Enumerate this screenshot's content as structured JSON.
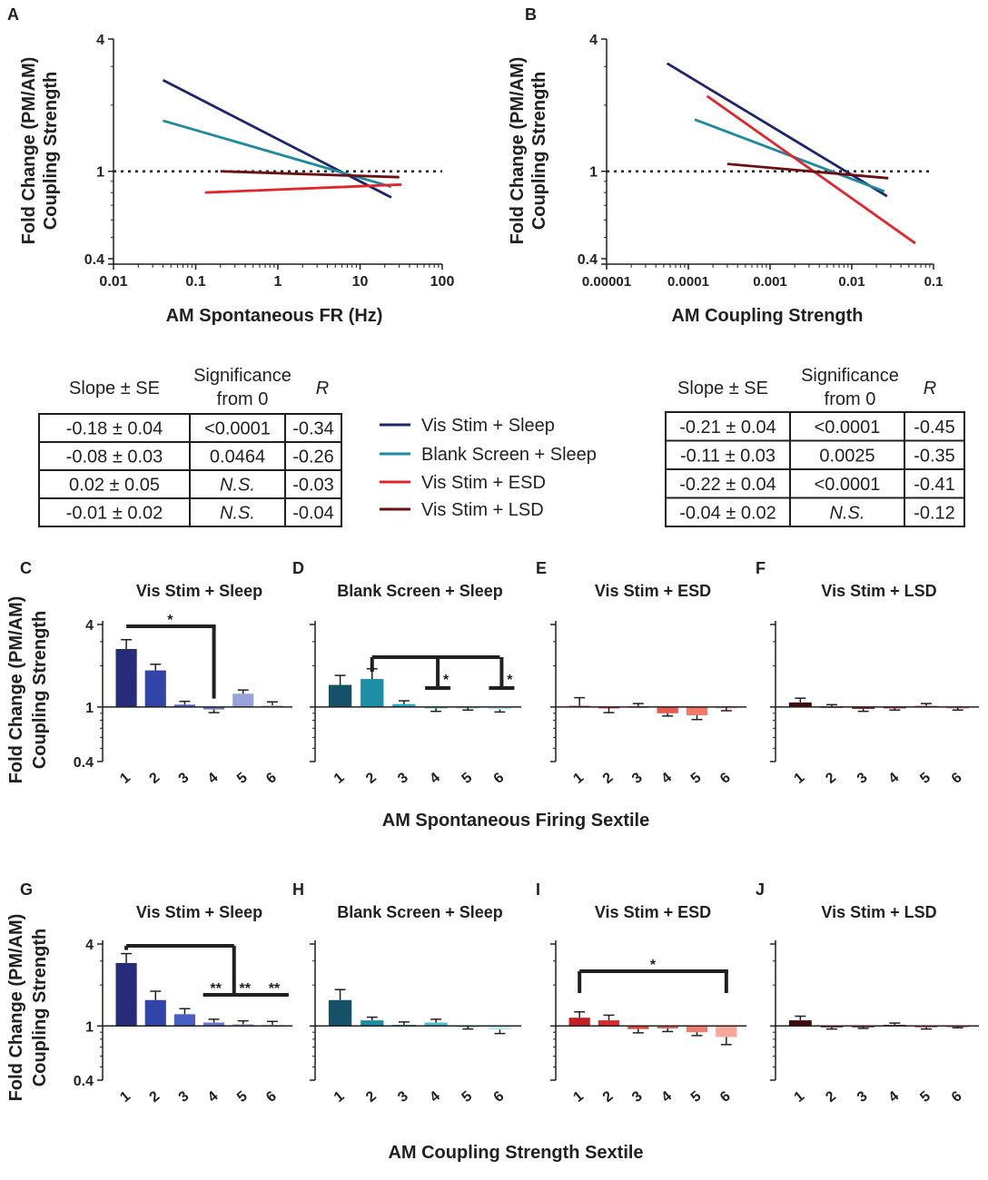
{
  "panel_letters": {
    "A": "A",
    "B": "B",
    "C": "C",
    "D": "D",
    "E": "E",
    "F": "F",
    "G": "G",
    "H": "H",
    "I": "I",
    "J": "J"
  },
  "colors": {
    "vis_sleep": "#1f2470",
    "blank_sleep": "#1e8aa0",
    "vis_esd": "#e3242b",
    "vis_lsd": "#6b0f12"
  },
  "y_label_line1": "Fold Change (PM/AM)",
  "y_label_line2": "Coupling Strength",
  "legend": {
    "items": [
      {
        "label": "Vis Stim + Sleep",
        "color": "#1f2470"
      },
      {
        "label": "Blank Screen + Sleep",
        "color": "#1e8aa0"
      },
      {
        "label": "Vis Stim + ESD",
        "color": "#e3242b"
      },
      {
        "label": "Vis Stim + LSD",
        "color": "#6b0f12"
      }
    ]
  },
  "tables": {
    "headers": {
      "slope": "Slope ± SE",
      "sig1": "Significance",
      "sig2": "from 0",
      "r": "R"
    },
    "A": [
      [
        "-0.18 ± 0.04",
        "<0.0001",
        "-0.34"
      ],
      [
        "-0.08 ± 0.03",
        "0.0464",
        "-0.26"
      ],
      [
        "0.02 ± 0.05",
        "N.S.",
        "-0.03"
      ],
      [
        "-0.01 ± 0.02",
        "N.S.",
        "-0.04"
      ]
    ],
    "B": [
      [
        "-0.21 ± 0.04",
        "<0.0001",
        "-0.45"
      ],
      [
        "-0.11 ± 0.03",
        "0.0025",
        "-0.35"
      ],
      [
        "-0.22 ± 0.04",
        "<0.0001",
        "-0.41"
      ],
      [
        "-0.04 ± 0.02",
        "N.S.",
        "-0.12"
      ]
    ]
  },
  "row_titles": {
    "middle": "AM Spontaneous Firing Sextile",
    "bottom": "AM Coupling Strength Sextile"
  },
  "chart_data": [
    {
      "id": "A",
      "type": "line",
      "xlabel": "AM Spontaneous FR (Hz)",
      "x_scale": "log",
      "xlim": [
        0.01,
        100
      ],
      "x_ticks": [
        0.01,
        0.1,
        1,
        10,
        100
      ],
      "x_tick_labels": [
        "0.01",
        "0.1",
        "1",
        "10",
        "100"
      ],
      "y_scale": "log",
      "ylim": [
        0.4,
        4
      ],
      "y_ticks": [
        0.4,
        1,
        4
      ],
      "y_tick_labels": [
        "0.4",
        "1",
        "4"
      ],
      "reference_line": 1,
      "series": [
        {
          "name": "Vis Stim + Sleep",
          "x": [
            0.04,
            24
          ],
          "y": [
            2.6,
            0.76
          ]
        },
        {
          "name": "Blank Screen + Sleep",
          "x": [
            0.04,
            24
          ],
          "y": [
            1.7,
            0.85
          ]
        },
        {
          "name": "Vis Stim + ESD",
          "x": [
            0.13,
            32
          ],
          "y": [
            0.8,
            0.87
          ]
        },
        {
          "name": "Vis Stim + LSD",
          "x": [
            0.2,
            30
          ],
          "y": [
            1.0,
            0.94
          ]
        }
      ]
    },
    {
      "id": "B",
      "type": "line",
      "xlabel": "AM Coupling Strength",
      "x_scale": "log",
      "xlim": [
        1e-05,
        0.1
      ],
      "x_ticks": [
        1e-05,
        0.0001,
        0.001,
        0.01,
        0.1
      ],
      "x_tick_labels": [
        "0.00001",
        "0.0001",
        "0.001",
        "0.01",
        "0.1"
      ],
      "y_scale": "log",
      "ylim": [
        0.4,
        4
      ],
      "y_ticks": [
        0.4,
        1,
        4
      ],
      "y_tick_labels": [
        "0.4",
        "1",
        "4"
      ],
      "reference_line": 1,
      "series": [
        {
          "name": "Vis Stim + Sleep",
          "x": [
            5.5e-05,
            0.027
          ],
          "y": [
            3.1,
            0.77
          ]
        },
        {
          "name": "Blank Screen + Sleep",
          "x": [
            0.00012,
            0.025
          ],
          "y": [
            1.72,
            0.81
          ]
        },
        {
          "name": "Vis Stim + ESD",
          "x": [
            0.00017,
            0.06
          ],
          "y": [
            2.2,
            0.47
          ]
        },
        {
          "name": "Vis Stim + LSD",
          "x": [
            0.0003,
            0.028
          ],
          "y": [
            1.08,
            0.93
          ]
        }
      ]
    },
    {
      "id": "C",
      "type": "bar",
      "title": "Vis Stim + Sleep",
      "categories": [
        "1",
        "2",
        "3",
        "4",
        "5",
        "6"
      ],
      "values": [
        2.65,
        1.85,
        1.04,
        0.96,
        1.25,
        1.03
      ],
      "errors": [
        0.45,
        0.2,
        0.06,
        0.05,
        0.08,
        0.06
      ],
      "colors": [
        "#262b7a",
        "#3145a8",
        "#4a5fc2",
        "#6a79cf",
        "#9aa2dc",
        "#c3c8ec"
      ],
      "ylim": [
        0.4,
        4
      ],
      "y_scale": "log",
      "y_ticks": [
        0.4,
        1,
        4
      ],
      "y_tick_labels": [
        "0.4",
        "1",
        "4"
      ],
      "significance": [
        {
          "from": 1,
          "to": 4,
          "label": "*"
        }
      ]
    },
    {
      "id": "D",
      "type": "bar",
      "title": "Blank Screen + Sleep",
      "categories": [
        "1",
        "2",
        "3",
        "4",
        "5",
        "6"
      ],
      "values": [
        1.45,
        1.6,
        1.05,
        0.98,
        0.99,
        0.96
      ],
      "errors": [
        0.25,
        0.3,
        0.06,
        0.05,
        0.04,
        0.04
      ],
      "colors": [
        "#15526a",
        "#1d8ea5",
        "#27a7c0",
        "#52bfd6",
        "#88d4e4",
        "#c0e9f2"
      ],
      "ylim": [
        0.4,
        4
      ],
      "y_scale": "log",
      "y_ticks": [
        0.4,
        1,
        4
      ],
      "y_tick_labels": [
        "0.4",
        "1",
        "4"
      ],
      "significance": [
        {
          "from": 2,
          "to": 4,
          "label": "*"
        },
        {
          "from": 2,
          "to": 6,
          "label": "*"
        }
      ]
    },
    {
      "id": "E",
      "type": "bar",
      "title": "Vis Stim + ESD",
      "categories": [
        "1",
        "2",
        "3",
        "4",
        "5",
        "6"
      ],
      "values": [
        1.02,
        0.99,
        1.01,
        0.9,
        0.87,
        0.99
      ],
      "errors": [
        0.15,
        0.08,
        0.05,
        0.04,
        0.06,
        0.05
      ],
      "colors": [
        "#c41e24",
        "#d72b2b",
        "#e3423a",
        "#ea5a4b",
        "#f07b69",
        "#f6a898"
      ],
      "ylim": [
        0.4,
        4
      ],
      "y_scale": "log",
      "y_ticks": [
        0.4,
        1,
        4
      ],
      "y_tick_labels": [
        "0.4",
        "1",
        "4"
      ],
      "significance": []
    },
    {
      "id": "F",
      "type": "bar",
      "title": "Vis Stim + LSD",
      "categories": [
        "1",
        "2",
        "3",
        "4",
        "5",
        "6"
      ],
      "values": [
        1.08,
        1.01,
        0.97,
        0.98,
        1.02,
        0.99
      ],
      "errors": [
        0.08,
        0.03,
        0.04,
        0.03,
        0.04,
        0.04
      ],
      "colors": [
        "#3f0a0c",
        "#6b0f12",
        "#86161b",
        "#9e2a2f",
        "#b5484c",
        "#cf7a7c"
      ],
      "ylim": [
        0.4,
        4
      ],
      "y_scale": "log",
      "y_ticks": [
        0.4,
        1,
        4
      ],
      "y_tick_labels": [
        "0.4",
        "1",
        "4"
      ],
      "significance": []
    },
    {
      "id": "G",
      "type": "bar",
      "title": "Vis Stim + Sleep",
      "categories": [
        "1",
        "2",
        "3",
        "4",
        "5",
        "6"
      ],
      "values": [
        2.9,
        1.55,
        1.22,
        1.06,
        1.03,
        1.02
      ],
      "errors": [
        0.5,
        0.25,
        0.12,
        0.06,
        0.06,
        0.06
      ],
      "colors": [
        "#262b7a",
        "#3145a8",
        "#4a5fc2",
        "#6a79cf",
        "#9aa2dc",
        "#c3c8ec"
      ],
      "ylim": [
        0.4,
        4
      ],
      "y_scale": "log",
      "y_ticks": [
        0.4,
        1,
        4
      ],
      "y_tick_labels": [
        "0.4",
        "1",
        "4"
      ],
      "significance": [
        {
          "from": 1,
          "to": 4,
          "label": "**"
        },
        {
          "from": 1,
          "to": 5,
          "label": "**"
        },
        {
          "from": 1,
          "to": 6,
          "label": "**"
        }
      ]
    },
    {
      "id": "H",
      "type": "bar",
      "title": "Blank Screen + Sleep",
      "categories": [
        "1",
        "2",
        "3",
        "4",
        "5",
        "6"
      ],
      "values": [
        1.55,
        1.1,
        1.02,
        1.06,
        0.99,
        0.94
      ],
      "errors": [
        0.3,
        0.06,
        0.05,
        0.06,
        0.04,
        0.06
      ],
      "colors": [
        "#15526a",
        "#1d8ea5",
        "#27a7c0",
        "#52bfd6",
        "#88d4e4",
        "#c0e9f2"
      ],
      "ylim": [
        0.4,
        4
      ],
      "y_scale": "log",
      "y_ticks": [
        0.4,
        1,
        4
      ],
      "y_tick_labels": [
        "0.4",
        "1",
        "4"
      ],
      "significance": []
    },
    {
      "id": "I",
      "type": "bar",
      "title": "Vis Stim + ESD",
      "categories": [
        "1",
        "2",
        "3",
        "4",
        "5",
        "6"
      ],
      "values": [
        1.15,
        1.1,
        0.95,
        0.96,
        0.9,
        0.83
      ],
      "errors": [
        0.12,
        0.1,
        0.06,
        0.05,
        0.05,
        0.1
      ],
      "colors": [
        "#c41e24",
        "#d72b2b",
        "#e3423a",
        "#ea5a4b",
        "#f07b69",
        "#f6a898"
      ],
      "ylim": [
        0.4,
        4
      ],
      "y_scale": "log",
      "y_ticks": [
        0.4,
        1,
        4
      ],
      "y_tick_labels": [
        "0.4",
        "1",
        "4"
      ],
      "significance": [
        {
          "from": 1,
          "to": 6,
          "label": "*"
        }
      ]
    },
    {
      "id": "J",
      "type": "bar",
      "title": "Vis Stim + LSD",
      "categories": [
        "1",
        "2",
        "3",
        "4",
        "5",
        "6"
      ],
      "values": [
        1.1,
        0.98,
        0.99,
        1.02,
        0.98,
        0.99
      ],
      "errors": [
        0.08,
        0.03,
        0.03,
        0.03,
        0.03,
        0.02
      ],
      "colors": [
        "#3f0a0c",
        "#6b0f12",
        "#86161b",
        "#9e2a2f",
        "#b5484c",
        "#cf7a7c"
      ],
      "ylim": [
        0.4,
        4
      ],
      "y_scale": "log",
      "y_ticks": [
        0.4,
        1,
        4
      ],
      "y_tick_labels": [
        "0.4",
        "1",
        "4"
      ],
      "significance": []
    }
  ]
}
